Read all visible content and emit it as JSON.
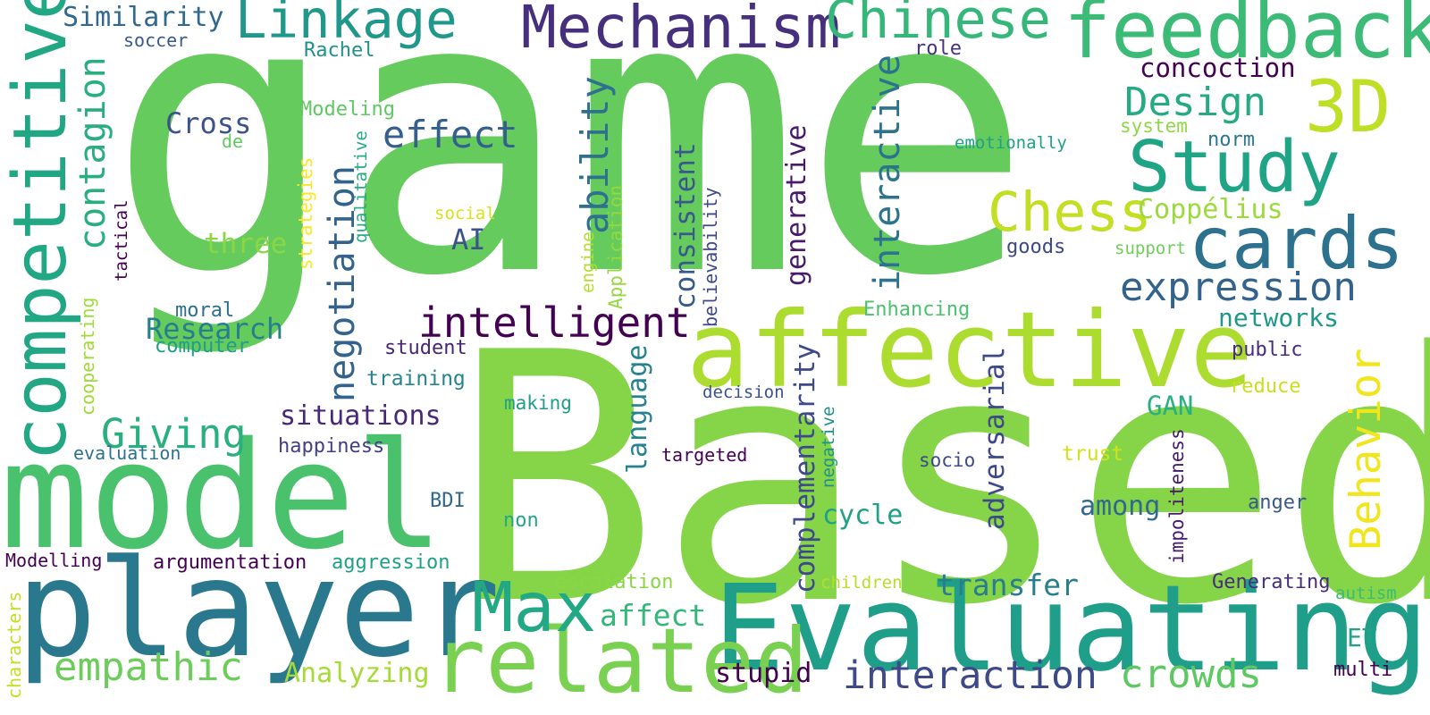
{
  "words": [
    {
      "id": "game",
      "text": "game",
      "color": "#66cb5d"
    },
    {
      "id": "based",
      "text": "Based",
      "color": "#86d549"
    },
    {
      "id": "model",
      "text": "model",
      "color": "#4ac16d"
    },
    {
      "id": "player",
      "text": "player",
      "color": "#2a788e"
    },
    {
      "id": "evaluating",
      "text": "Evaluating",
      "color": "#1f9e89"
    },
    {
      "id": "affective",
      "text": "affective",
      "color": "#addc30"
    },
    {
      "id": "feedback",
      "text": "feedback",
      "color": "#3bbb75"
    },
    {
      "id": "related",
      "text": "related",
      "color": "#7ad151"
    },
    {
      "id": "competitive",
      "text": "competitive",
      "color": "#22a785"
    },
    {
      "id": "mechanism",
      "text": "Mechanism",
      "color": "#46307e"
    },
    {
      "id": "chinese",
      "text": "Chinese",
      "color": "#35b779"
    },
    {
      "id": "linkage",
      "text": "Linkage",
      "color": "#1f988b"
    },
    {
      "id": "study",
      "text": "Study",
      "color": "#20a486"
    },
    {
      "id": "cards",
      "text": "cards",
      "color": "#2c728e"
    },
    {
      "id": "3d",
      "text": "3D",
      "color": "#bddf26"
    },
    {
      "id": "chess",
      "text": "Chess",
      "color": "#c2df23"
    },
    {
      "id": "max",
      "text": "Max",
      "color": "#22a884"
    },
    {
      "id": "behavior",
      "text": "Behavior",
      "color": "#f1e51d"
    },
    {
      "id": "intelligent",
      "text": "intelligent",
      "color": "#440154"
    },
    {
      "id": "expression",
      "text": "expression",
      "color": "#33638d"
    },
    {
      "id": "interaction",
      "text": "interaction",
      "color": "#3e4989"
    },
    {
      "id": "empathic",
      "text": "empathic",
      "color": "#6ccd5a"
    },
    {
      "id": "crowds",
      "text": "crowds",
      "color": "#5ec962"
    },
    {
      "id": "design",
      "text": "Design",
      "color": "#25ab82"
    },
    {
      "id": "effect",
      "text": "effect",
      "color": "#355f8d"
    },
    {
      "id": "ability",
      "text": "ability",
      "color": "#2d718e"
    },
    {
      "id": "contagion",
      "text": "contagion",
      "color": "#29af7f"
    },
    {
      "id": "negotiation",
      "text": "negotiation",
      "color": "#33638d"
    },
    {
      "id": "interactive",
      "text": "interactive",
      "color": "#2c738e"
    },
    {
      "id": "giving",
      "text": "Giving",
      "color": "#2ab07f"
    },
    {
      "id": "coppelius",
      "text": "Coppélius",
      "color": "#9bd93c"
    },
    {
      "id": "transfer",
      "text": "transfer",
      "color": "#287d8e"
    },
    {
      "id": "affect",
      "text": "affect",
      "color": "#35b779"
    },
    {
      "id": "research",
      "text": "Research",
      "color": "#277f8e"
    },
    {
      "id": "situations",
      "text": "situations",
      "color": "#482878"
    },
    {
      "id": "analyzing",
      "text": "Analyzing",
      "color": "#a5db36"
    },
    {
      "id": "stupid",
      "text": "stupid",
      "color": "#440154"
    },
    {
      "id": "similarity",
      "text": "Similarity",
      "color": "#31688e"
    },
    {
      "id": "cross",
      "text": "Cross",
      "color": "#3b528b"
    },
    {
      "id": "three",
      "text": "three",
      "color": "#8bd646"
    },
    {
      "id": "ai",
      "text": "AI",
      "color": "#3b528b"
    },
    {
      "id": "concoction",
      "text": "concoction",
      "color": "#440154"
    },
    {
      "id": "networks",
      "text": "networks",
      "color": "#1f978b"
    },
    {
      "id": "cycle",
      "text": "cycle",
      "color": "#1fa188"
    },
    {
      "id": "among",
      "text": "among",
      "color": "#31688e"
    },
    {
      "id": "gan",
      "text": "GAN",
      "color": "#2ab07f"
    },
    {
      "id": "et",
      "text": "ET",
      "color": "#20a386"
    },
    {
      "id": "consistent",
      "text": "consistent",
      "color": "#38598c"
    },
    {
      "id": "generative",
      "text": "generative",
      "color": "#481a6c"
    },
    {
      "id": "complementarity",
      "text": "complementarity",
      "color": "#3e4989"
    },
    {
      "id": "adversarial",
      "text": "adversarial",
      "color": "#3e4989"
    },
    {
      "id": "language",
      "text": "language",
      "color": "#26828e"
    },
    {
      "id": "soccer",
      "text": "soccer",
      "color": "#38598c"
    },
    {
      "id": "rachel",
      "text": "Rachel",
      "color": "#21918c"
    },
    {
      "id": "modeling",
      "text": "Modeling",
      "color": "#5ec962"
    },
    {
      "id": "de",
      "text": "de",
      "color": "#5ec962"
    },
    {
      "id": "role",
      "text": "role",
      "color": "#46337e"
    },
    {
      "id": "emotionally",
      "text": "emotionally",
      "color": "#1fa188"
    },
    {
      "id": "system",
      "text": "system",
      "color": "#8fd744"
    },
    {
      "id": "norm",
      "text": "norm",
      "color": "#2a788e"
    },
    {
      "id": "social",
      "text": "social",
      "color": "#d8e219"
    },
    {
      "id": "support",
      "text": "support",
      "color": "#6ece58"
    },
    {
      "id": "goods",
      "text": "goods",
      "color": "#3e4989"
    },
    {
      "id": "moral",
      "text": "moral",
      "color": "#2e6f8e"
    },
    {
      "id": "computer",
      "text": "computer",
      "color": "#1f9e89"
    },
    {
      "id": "student",
      "text": "student",
      "color": "#482475"
    },
    {
      "id": "training",
      "text": "training",
      "color": "#25848e"
    },
    {
      "id": "decision",
      "text": "decision",
      "color": "#3b528b"
    },
    {
      "id": "enhancing",
      "text": "Enhancing",
      "color": "#4ac16d"
    },
    {
      "id": "public",
      "text": "public",
      "color": "#472d7b"
    },
    {
      "id": "reduce",
      "text": "reduce",
      "color": "#c8e020"
    },
    {
      "id": "making",
      "text": "making",
      "color": "#1f9e89"
    },
    {
      "id": "happiness",
      "text": "happiness",
      "color": "#433e85"
    },
    {
      "id": "evaluation",
      "text": "evaluation",
      "color": "#2c728e"
    },
    {
      "id": "targeted",
      "text": "targeted",
      "color": "#440154"
    },
    {
      "id": "trust",
      "text": "trust",
      "color": "#d2e21b"
    },
    {
      "id": "socio",
      "text": "socio",
      "color": "#3e4989"
    },
    {
      "id": "bdi",
      "text": "BDI",
      "color": "#31688e"
    },
    {
      "id": "non",
      "text": "non",
      "color": "#22a884"
    },
    {
      "id": "anger",
      "text": "anger",
      "color": "#38598c"
    },
    {
      "id": "modelling",
      "text": "Modelling",
      "color": "#440154"
    },
    {
      "id": "argumentation",
      "text": "argumentation",
      "color": "#440154"
    },
    {
      "id": "aggression",
      "text": "aggression",
      "color": "#1fa188"
    },
    {
      "id": "escalation",
      "text": "escalation",
      "color": "#8bd646"
    },
    {
      "id": "children",
      "text": "children",
      "color": "#b5de2b"
    },
    {
      "id": "generating",
      "text": "Generating",
      "color": "#472d7b"
    },
    {
      "id": "autism",
      "text": "autism",
      "color": "#3bbb75"
    },
    {
      "id": "multi",
      "text": "multi",
      "color": "#440154"
    },
    {
      "id": "strategies",
      "text": "strategies",
      "color": "#fde725"
    },
    {
      "id": "qualitative",
      "text": "qualitative",
      "color": "#25ab82"
    },
    {
      "id": "tactical",
      "text": "tactical",
      "color": "#440154"
    },
    {
      "id": "cooperating",
      "text": "cooperating",
      "color": "#a0da39"
    },
    {
      "id": "characters",
      "text": "characters",
      "color": "#c2df23"
    },
    {
      "id": "engine",
      "text": "engine",
      "color": "#b5de2b"
    },
    {
      "id": "application",
      "text": "Application",
      "color": "#95d840"
    },
    {
      "id": "believability",
      "text": "believability",
      "color": "#3e4989"
    },
    {
      "id": "negative",
      "text": "negative",
      "color": "#21918c"
    },
    {
      "id": "impoliteness",
      "text": "impoliteness",
      "color": "#481a6c"
    }
  ]
}
